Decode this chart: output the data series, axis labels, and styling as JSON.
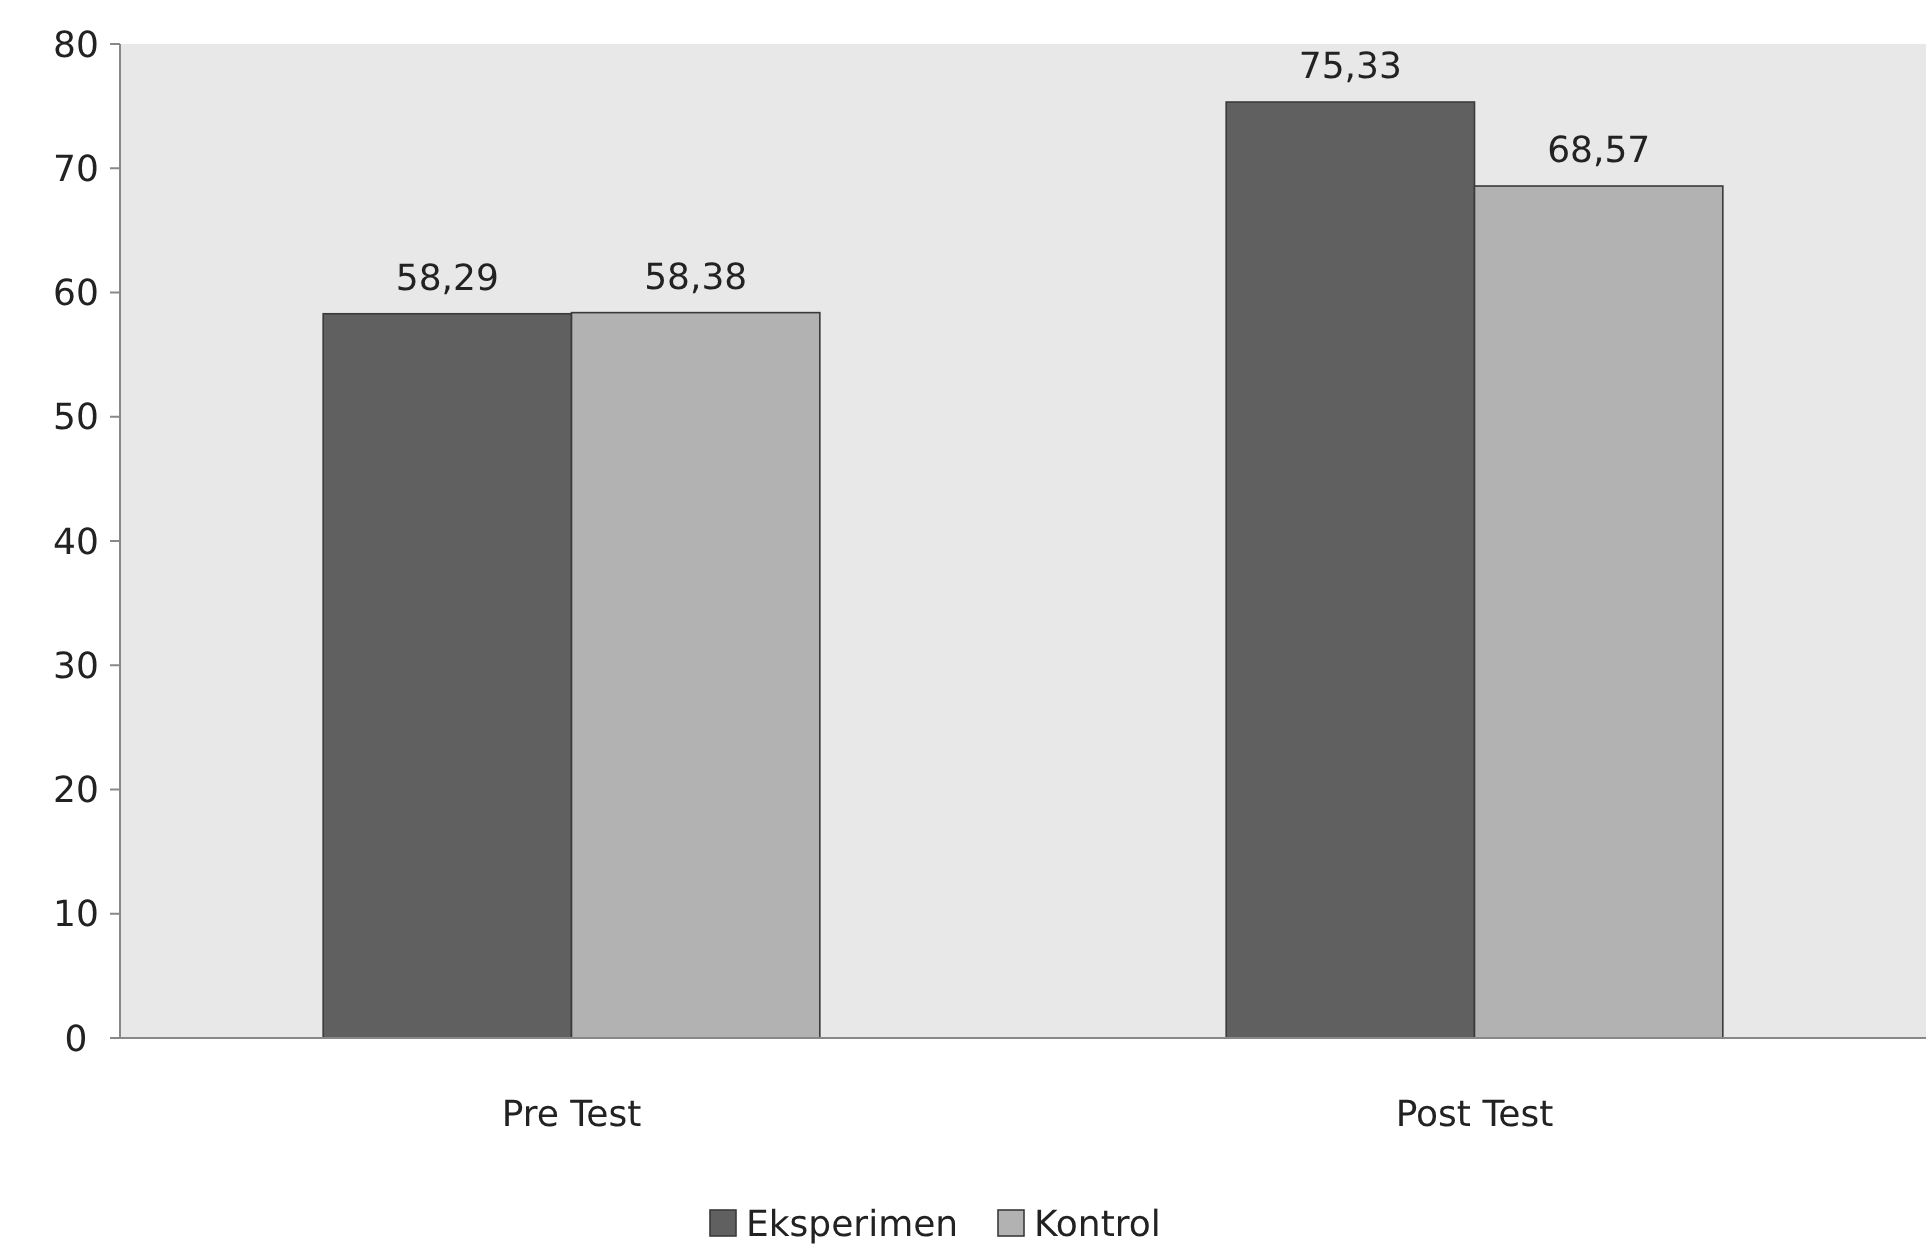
{
  "chart_data": {
    "type": "bar",
    "categories": [
      "Pre Test",
      "Post Test"
    ],
    "series": [
      {
        "name": "Eksperimen",
        "color": "#606060",
        "values": [
          58.29,
          75.33
        ],
        "value_labels": [
          "58,29",
          "75,33"
        ]
      },
      {
        "name": "Kontrol",
        "color": "#b2b2b2",
        "values": [
          58.38,
          68.57
        ],
        "value_labels": [
          "58,38",
          "68,57"
        ]
      }
    ],
    "ylim": [
      0,
      80
    ],
    "yticks": [
      0,
      10,
      20,
      30,
      40,
      50,
      60,
      70,
      80
    ],
    "grid": false,
    "legend": "bottom"
  }
}
